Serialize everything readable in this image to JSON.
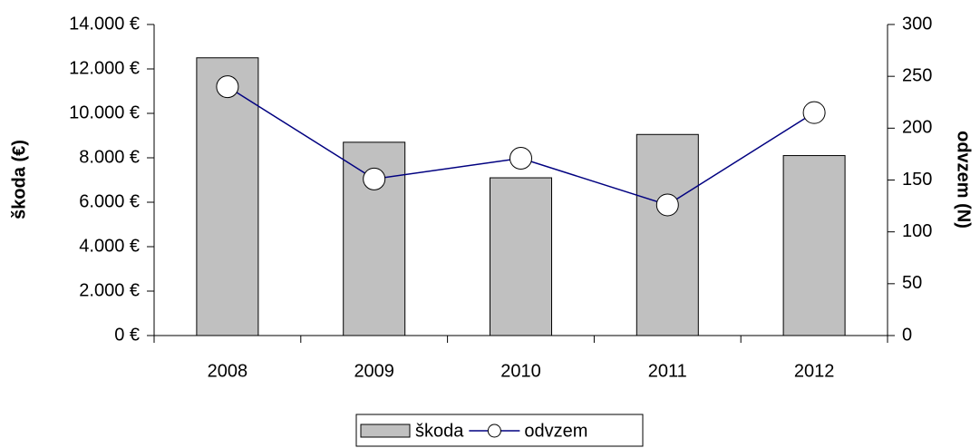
{
  "chart_data": {
    "type": "bar-line",
    "categories": [
      "2008",
      "2009",
      "2010",
      "2011",
      "2012"
    ],
    "series": [
      {
        "name": "škoda",
        "type": "bar",
        "color": "#c0c0c0",
        "values": [
          12500,
          8700,
          7100,
          9050,
          8100
        ]
      },
      {
        "name": "odvzem",
        "type": "line",
        "axis": "y2",
        "color": "#000080",
        "values": [
          240,
          151,
          171,
          126,
          215
        ]
      }
    ],
    "ylabel": "škoda (€)",
    "y2label": "odvzem (N)",
    "ylim": [
      0,
      14000
    ],
    "yticks": [
      {
        "value": 0,
        "label": "0 €"
      },
      {
        "value": 2000,
        "label": "2.000 €"
      },
      {
        "value": 4000,
        "label": "4.000 €"
      },
      {
        "value": 6000,
        "label": "6.000 €"
      },
      {
        "value": 8000,
        "label": "8.000 €"
      },
      {
        "value": 10000,
        "label": "10.000 €"
      },
      {
        "value": 12000,
        "label": "12.000 €"
      },
      {
        "value": 14000,
        "label": "14.000 €"
      }
    ],
    "y2lim": [
      0,
      300
    ],
    "y2ticks": [
      0,
      50,
      100,
      150,
      200,
      250,
      300
    ],
    "legend": "bottom"
  }
}
